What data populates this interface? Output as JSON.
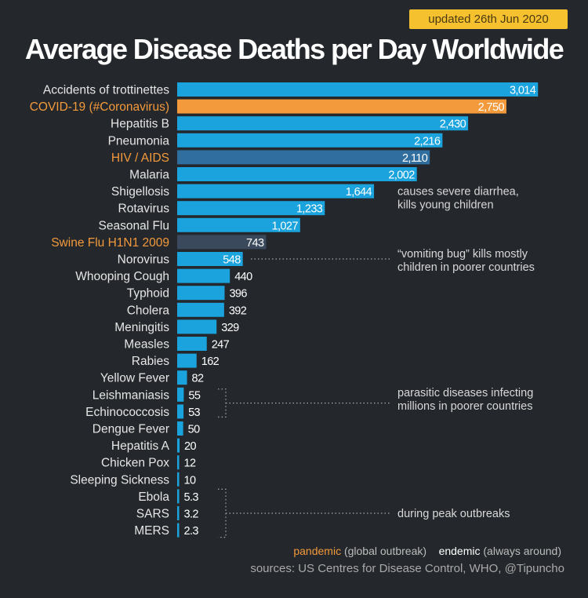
{
  "badge": "updated 26th Jun 2020",
  "chart_data": {
    "type": "bar",
    "orientation": "horizontal",
    "title": "Average Disease Deaths per Day Worldwide",
    "categories": [
      "Accidents of trottinettes",
      "COVID-19 (#Coronavirus)",
      "Hepatitis B",
      "Pneumonia",
      "HIV / AIDS",
      "Malaria",
      "Shigellosis",
      "Rotavirus",
      "Seasonal Flu",
      "Swine Flu H1N1 2009",
      "Norovirus",
      "Whooping Cough",
      "Typhoid",
      "Cholera",
      "Meningitis",
      "Measles",
      "Rabies",
      "Yellow Fever",
      "Leishmaniasis",
      "Echinococcosis",
      "Dengue Fever",
      "Hepatitis A",
      "Chicken Pox",
      "Sleeping Sickness",
      "Ebola",
      "SARS",
      "MERS"
    ],
    "values": [
      3014,
      2750,
      2430,
      2216,
      2110,
      2002,
      1644,
      1233,
      1027,
      743,
      548,
      440,
      396,
      392,
      329,
      247,
      162,
      82,
      55,
      53,
      50,
      20,
      12,
      10,
      5.3,
      3.2,
      2.3
    ],
    "value_labels": [
      "3,014",
      "2,750",
      "2,430",
      "2,216",
      "2,110",
      "2,002",
      "1,644",
      "1,233",
      "1,027",
      "743",
      "548",
      "440",
      "396",
      "392",
      "329",
      "247",
      "162",
      "82",
      "55",
      "53",
      "50",
      "20",
      "12",
      "10",
      "5.3",
      "3.2",
      "2.3"
    ],
    "pandemic": [
      "COVID-19 (#Coronavirus)",
      "HIV / AIDS",
      "Swine Flu H1N1 2009"
    ],
    "colors": {
      "endemic": "#1aa3dc",
      "pandemic_label": "#f39a3c",
      "covid_bar": "#f39a3c",
      "hiv_bar": "#2f6e9f",
      "swine_bar": "#3a4a5c"
    },
    "annotations": [
      {
        "lines": [
          "causes severe diarrhea,",
          "kills young children"
        ]
      },
      {
        "lines": [
          "“vomiting bug” kills mostly",
          "children in poorer countries"
        ]
      },
      {
        "lines": [
          "parasitic diseases infecting",
          "millions in poorer countries"
        ]
      },
      {
        "lines": [
          "during peak outbreaks"
        ]
      }
    ]
  },
  "legend": {
    "pandemic": "pandemic",
    "pandemic_desc": "(global outbreak)",
    "endemic": "endemic",
    "endemic_desc": "(always around)"
  },
  "sources": "sources: US Centres for Disease Control, WHO, @Tipuncho"
}
